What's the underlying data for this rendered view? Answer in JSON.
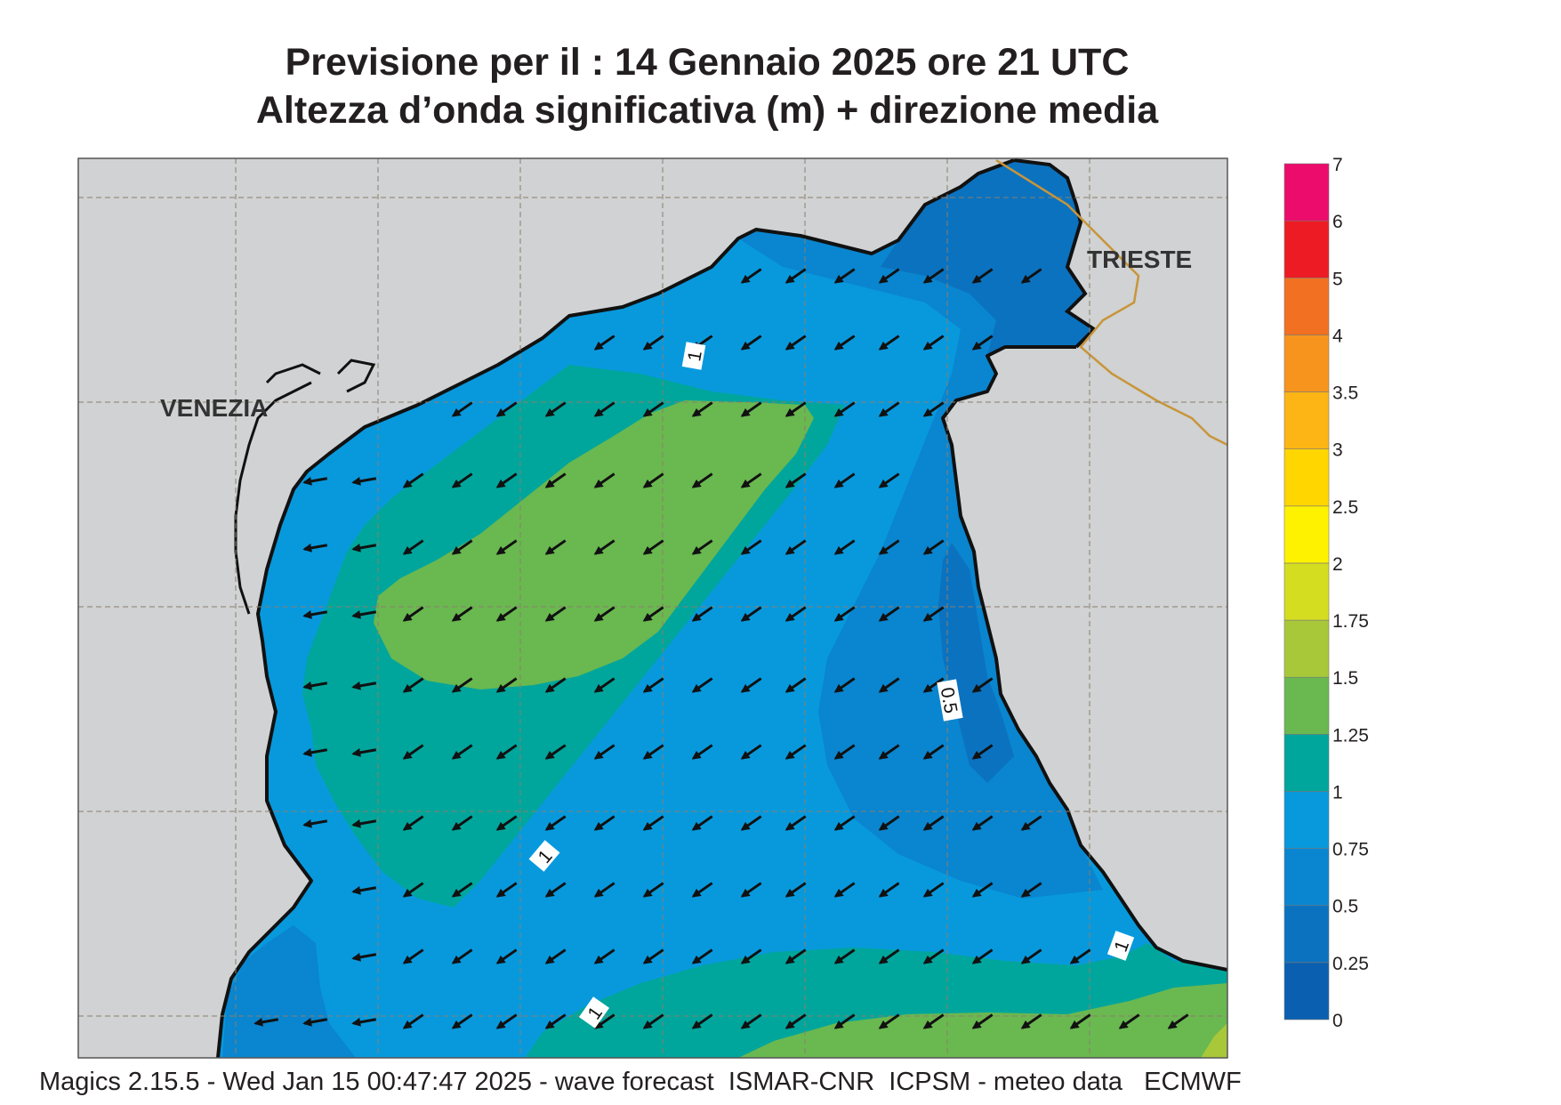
{
  "title_line1": "Previsione per il  :  14  Gennaio  2025   ore 21 UTC",
  "title_line2": "Altezza d’onda significativa (m) + direzione media",
  "footer": "Magics 2.15.5 - Wed Jan 15 00:47:47 2025 - wave forecast  ISMAR-CNR  ICPSM - meteo data   ECMWF",
  "places": {
    "venezia": "VENEZIA",
    "trieste": "TRIESTE"
  },
  "contour_labels": [
    "1",
    "1",
    "1",
    "1",
    "0.5"
  ],
  "legend": {
    "levels": [
      "0",
      "0.25",
      "0.5",
      "0.75",
      "1",
      "1.25",
      "1.5",
      "1.75",
      "2",
      "2.5",
      "3",
      "3.5",
      "4",
      "5",
      "6",
      "7"
    ],
    "colors": [
      "#0a5fb0",
      "#0b72bf",
      "#0a85cf",
      "#0899dd",
      "#00a69c",
      "#6ab850",
      "#a8c83a",
      "#d5dd21",
      "#fff200",
      "#ffd600",
      "#fdb515",
      "#f7941d",
      "#f27021",
      "#ed1c24",
      "#ec0c6c"
    ]
  },
  "mean_wave_direction": "toward south-west"
}
